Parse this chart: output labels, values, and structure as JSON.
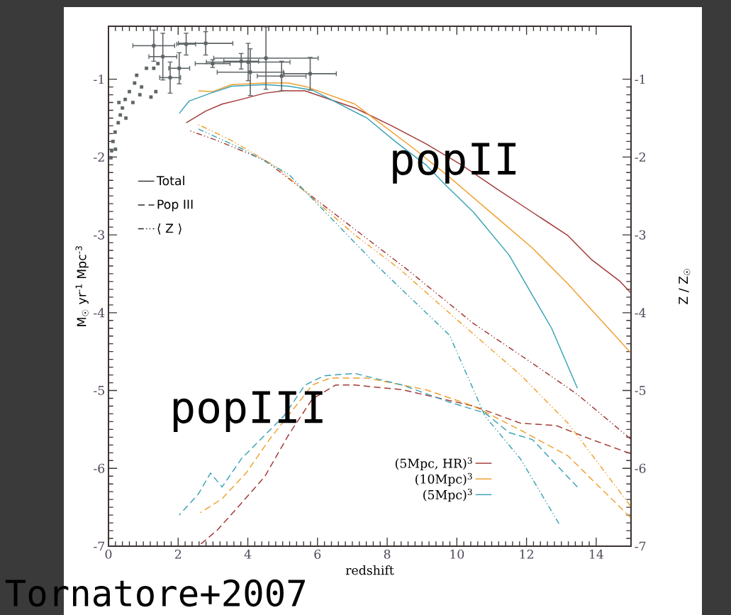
{
  "chart_data": {
    "type": "line",
    "xlabel": "redshift",
    "ylabel": "M$_{☉}$ yr$^{-1}$ Mpc$^{-3}$",
    "y2label": "Z / Z$_{☉}$",
    "xlim": [
      0,
      15
    ],
    "ylim": [
      -7,
      -0.32
    ],
    "y2lim": [
      -7,
      -0.32
    ],
    "xticks": [
      0,
      2,
      4,
      6,
      8,
      10,
      12,
      14
    ],
    "yticks": [
      -7,
      -6,
      -5,
      -4,
      -3,
      -2,
      -1
    ],
    "y2ticks": [
      -7,
      -6,
      -5,
      -4,
      -3,
      -2,
      -1
    ],
    "legend": "bottom right",
    "annotations": [
      "Total",
      "Pop III",
      "⟨ Z ⟩",
      "popII",
      "popIII",
      "Tornatore+2007"
    ],
    "series": [
      {
        "name": "(5Mpc, HR)$^{3}$",
        "color": "#a23a36",
        "line_style": "solid",
        "x": [
          2.23,
          2.79,
          3.26,
          3.81,
          4.48,
          5.03,
          5.64,
          7.07,
          8.09,
          9.11,
          10.13,
          11.15,
          12.17,
          13.19,
          13.87,
          14.69,
          14.98
        ],
        "values": [
          -1.56,
          -1.41,
          -1.32,
          -1.26,
          -1.18,
          -1.15,
          -1.15,
          -1.37,
          -1.59,
          -1.83,
          -2.1,
          -2.41,
          -2.71,
          -3.01,
          -3.32,
          -3.6,
          -3.74
        ]
      },
      {
        "name": "(10Mpc)$^{3}$",
        "color": "#f0a030",
        "line_style": "solid",
        "x": [
          2.58,
          2.99,
          3.54,
          4.48,
          5.17,
          5.7,
          7.07,
          8.76,
          9.79,
          11.15,
          12.17,
          13.19,
          14.98
        ],
        "values": [
          -1.15,
          -1.16,
          -1.07,
          -1.05,
          -1.05,
          -1.1,
          -1.32,
          -1.89,
          -2.26,
          -2.78,
          -3.17,
          -3.63,
          -4.51
        ]
      },
      {
        "name": "(5Mpc)$^{3}$",
        "color": "#3aa3b5",
        "line_style": "solid",
        "x": [
          2.03,
          2.32,
          2.93,
          3.54,
          4.48,
          5.17,
          5.85,
          7.42,
          8.23,
          9.11,
          9.72,
          10.48,
          11.5,
          12.72,
          13.46
        ],
        "values": [
          -1.44,
          -1.28,
          -1.18,
          -1.09,
          -1.07,
          -1.09,
          -1.14,
          -1.5,
          -1.8,
          -2.1,
          -2.38,
          -2.71,
          -3.26,
          -4.2,
          -4.97
        ]
      },
      {
        "color": "#a23a36",
        "line_style": "dashed",
        "x": [
          2.58,
          3.13,
          3.81,
          4.48,
          5.17,
          5.85,
          6.52,
          7.07,
          8.44,
          10.48,
          11.83,
          12.85,
          13.87,
          14.98
        ],
        "values": [
          -7.0,
          -6.79,
          -6.45,
          -6.11,
          -5.57,
          -5.11,
          -4.93,
          -4.93,
          -4.99,
          -5.2,
          -5.42,
          -5.45,
          -5.63,
          -5.81
        ]
      },
      {
        "color": "#f0a030",
        "line_style": "dashed",
        "x": [
          2.64,
          3.26,
          3.95,
          4.62,
          5.85,
          6.36,
          7.42,
          9.11,
          10.48,
          11.83,
          13.19,
          14.98
        ],
        "values": [
          -6.57,
          -6.39,
          -6.06,
          -5.63,
          -4.93,
          -4.84,
          -4.84,
          -4.99,
          -5.2,
          -5.51,
          -5.84,
          -6.63
        ]
      },
      {
        "color": "#3aa3b5",
        "line_style": "dashed",
        "x": [
          2.03,
          2.58,
          2.93,
          3.26,
          3.81,
          4.36,
          5.03,
          5.64,
          6.19,
          7.07,
          8.44,
          9.79,
          10.81,
          11.5,
          12.17,
          13.46
        ],
        "values": [
          -6.6,
          -6.33,
          -6.06,
          -6.24,
          -5.88,
          -5.63,
          -5.33,
          -4.93,
          -4.81,
          -4.78,
          -4.93,
          -5.15,
          -5.29,
          -5.54,
          -5.63,
          -6.24
        ]
      },
      {
        "color": "#a23a36",
        "line_style": "dashdot",
        "axis": "y2",
        "x": [
          2.32,
          3.13,
          4.48,
          8.56,
          10.48,
          12.17,
          13.46,
          14.98
        ],
        "values": [
          -1.66,
          -1.79,
          -2.04,
          -3.44,
          -4.14,
          -4.65,
          -5.05,
          -5.62
        ]
      },
      {
        "color": "#f0a030",
        "line_style": "dashdot",
        "axis": "y2",
        "x": [
          2.52,
          3.54,
          4.83,
          7.07,
          8.36,
          10.13,
          11.83,
          13.19,
          14.98
        ],
        "values": [
          -1.57,
          -1.79,
          -2.13,
          -3.0,
          -3.44,
          -4.14,
          -4.8,
          -5.42,
          -6.48
        ]
      },
      {
        "color": "#3aa3b5",
        "line_style": "dashdot",
        "axis": "y2",
        "x": [
          2.58,
          3.81,
          5.17,
          7.74,
          9.79,
          10.81,
          11.83,
          12.93
        ],
        "values": [
          -1.64,
          -1.89,
          -2.22,
          -3.41,
          -4.29,
          -5.33,
          -5.88,
          -6.71
        ]
      },
      {
        "type": "scatter",
        "color": "#5d6466",
        "marker": "square",
        "x": [
          0.07,
          0.09,
          0.13,
          0.19,
          0.2,
          0.28,
          0.3,
          0.34,
          0.4,
          0.48,
          0.5,
          0.6,
          0.7,
          0.75,
          0.81,
          0.9,
          0.95,
          1.09,
          1.22,
          1.3,
          1.36,
          1.42,
          1.3,
          1.56,
          1.77,
          2.03,
          2.23,
          2.79,
          2.99,
          3.81,
          4.01,
          4.07,
          4.52,
          4.97,
          5.79
        ],
        "values": [
          -2.01,
          -1.92,
          -1.8,
          -1.68,
          -1.9,
          -1.56,
          -1.3,
          -1.46,
          -1.37,
          -1.26,
          -1.5,
          -1.16,
          -1.3,
          -1.05,
          -0.95,
          -1.2,
          -1.1,
          -0.86,
          -1.23,
          -0.86,
          -1.16,
          -0.8,
          -0.57,
          -0.71,
          -0.98,
          -0.86,
          -0.55,
          -0.54,
          -0.8,
          -0.77,
          -0.78,
          -0.91,
          -0.73,
          -0.96,
          -0.93
        ],
        "xerrors": [
          null,
          null,
          null,
          null,
          null,
          null,
          null,
          null,
          null,
          null,
          null,
          null,
          null,
          null,
          null,
          null,
          null,
          null,
          null,
          null,
          null,
          null,
          0.6,
          0.4,
          0.3,
          0.3,
          0.27,
          0.78,
          0.5,
          0.5,
          1.2,
          0.95,
          1.5,
          0.7,
          0.75
        ],
        "errors": [
          null,
          null,
          null,
          null,
          null,
          null,
          null,
          null,
          null,
          null,
          null,
          null,
          null,
          null,
          null,
          null,
          null,
          null,
          null,
          null,
          null,
          null,
          0.2,
          0.3,
          0.2,
          0.2,
          0.14,
          0.15,
          0.05,
          0.1,
          0.24,
          0.3,
          0.4,
          0.19,
          0.21
        ]
      }
    ]
  }
}
